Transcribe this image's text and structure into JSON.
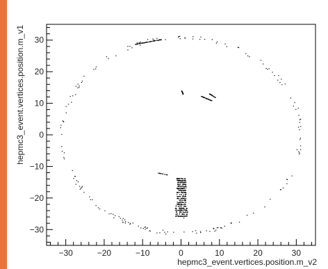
{
  "colors": {
    "accent_strip": "#e8743b",
    "frame": "#000000",
    "points": "#000000"
  },
  "chart_data": {
    "type": "scatter",
    "title": "",
    "xlabel": "hepmc3_event.vertices.position.m_v2",
    "ylabel": "hepmc3_event.vertices.position.m_v1",
    "xlim": [
      -35,
      35
    ],
    "ylim": [
      -35,
      35
    ],
    "xticks": [
      -30,
      -20,
      -10,
      0,
      10,
      20,
      30
    ],
    "yticks": [
      -30,
      -20,
      -10,
      0,
      10,
      20,
      30
    ],
    "grid": false,
    "legend": "none",
    "clusters": [
      {
        "desc": "upper arc",
        "x0": -12,
        "y0": 28.8,
        "x1": -5,
        "y1": 30.3,
        "count": 70,
        "spread": 0.35
      },
      {
        "desc": "small mark left",
        "x0": 0,
        "y0": 14.3,
        "x1": 0.4,
        "y1": 13.0,
        "count": 18,
        "spread": 0.2
      },
      {
        "desc": "streak right",
        "x0": 5.2,
        "y0": 12.3,
        "x1": 7.9,
        "y1": 10.9,
        "count": 40,
        "spread": 0.25
      },
      {
        "desc": "streak right upper",
        "x0": 7.3,
        "y0": 13.1,
        "x1": 8.9,
        "y1": 11.9,
        "count": 28,
        "spread": 0.2
      },
      {
        "desc": "dash left",
        "x0": -6,
        "y0": -12.0,
        "x1": -3.5,
        "y1": -12.6,
        "count": 16,
        "spread": 0.15
      },
      {
        "desc": "vertical column",
        "x0": 0,
        "y0": -13.5,
        "x1": 0,
        "y1": -26.0,
        "count": 420,
        "spread": 1.3
      }
    ],
    "ring": {
      "radius": 31,
      "count": 190,
      "jitter": 0.6
    }
  }
}
